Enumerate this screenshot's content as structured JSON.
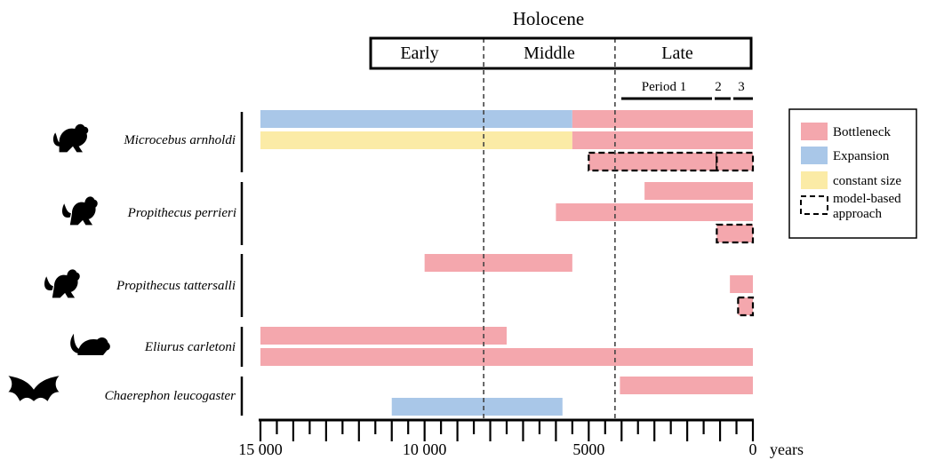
{
  "chart_data": {
    "type": "bar",
    "title": "Holocene",
    "epochs": [
      "Early",
      "Middle",
      "Late"
    ],
    "epoch_boundaries": [
      8200,
      4200
    ],
    "late_periods": [
      "Period 1",
      "2",
      "3"
    ],
    "x_unit": "years",
    "xlim": [
      15000,
      0
    ],
    "x_reversed": true,
    "tick_labels": [
      {
        "value": 15000,
        "label": "15 000"
      },
      {
        "value": 10000,
        "label": "10 000"
      },
      {
        "value": 5000,
        "label": "5000"
      },
      {
        "value": 0,
        "label": "0"
      }
    ],
    "species": [
      {
        "name": "Microcebus arnholdi",
        "icon": "mouse-lemur-icon",
        "bars": [
          {
            "row": 0,
            "segments": [
              {
                "type": "Expansion",
                "start": 15000,
                "end": 5500
              },
              {
                "type": "Bottleneck",
                "start": 5500,
                "end": 0
              }
            ]
          },
          {
            "row": 1,
            "segments": [
              {
                "type": "constant size",
                "start": 15000,
                "end": 5500
              },
              {
                "type": "Bottleneck",
                "start": 5500,
                "end": 0
              }
            ]
          },
          {
            "row": 2,
            "segments": [
              {
                "type": "Bottleneck",
                "start": 5000,
                "end": 1100,
                "model_based": true
              },
              {
                "type": "Bottleneck",
                "start": 1100,
                "end": 0,
                "model_based": true
              }
            ]
          }
        ]
      },
      {
        "name": "Propithecus perrieri",
        "icon": "sifaka-icon",
        "bars": [
          {
            "row": 0,
            "segments": [
              {
                "type": "Bottleneck",
                "start": 3300,
                "end": 0
              }
            ]
          },
          {
            "row": 1,
            "segments": [
              {
                "type": "Bottleneck",
                "start": 6000,
                "end": 0
              }
            ]
          },
          {
            "row": 2,
            "segments": [
              {
                "type": "Bottleneck",
                "start": 1100,
                "end": 0,
                "model_based": true
              }
            ]
          }
        ]
      },
      {
        "name": "Propithecus tattersalli",
        "icon": "sifaka-icon",
        "bars": [
          {
            "row": 0,
            "segments": [
              {
                "type": "Bottleneck",
                "start": 10000,
                "end": 5500
              }
            ]
          },
          {
            "row": 1,
            "segments": [
              {
                "type": "Bottleneck",
                "start": 700,
                "end": 0
              }
            ]
          },
          {
            "row": 2,
            "segments": [
              {
                "type": "Bottleneck",
                "start": 450,
                "end": 0,
                "model_based": true
              }
            ]
          }
        ]
      },
      {
        "name": "Eliurus carletoni",
        "icon": "rodent-icon",
        "bars": [
          {
            "row": 0,
            "segments": [
              {
                "type": "Bottleneck",
                "start": 15000,
                "end": 7500
              }
            ]
          },
          {
            "row": 1,
            "segments": [
              {
                "type": "Bottleneck",
                "start": 15000,
                "end": 0
              }
            ]
          }
        ]
      },
      {
        "name": "Chaerephon leucogaster",
        "icon": "bat-icon",
        "bars": [
          {
            "row": 0,
            "segments": [
              {
                "type": "Bottleneck",
                "start": 4050,
                "end": 0
              }
            ]
          },
          {
            "row": 1,
            "segments": [
              {
                "type": "Expansion",
                "start": 11000,
                "end": 5800
              }
            ]
          }
        ]
      }
    ],
    "legend": {
      "position": "right",
      "items": [
        {
          "label": "Bottleneck",
          "color": "#f4a7ad",
          "style": "fill"
        },
        {
          "label": "Expansion",
          "color": "#a9c7e8",
          "style": "fill"
        },
        {
          "label": "constant size",
          "color": "#fbeba6",
          "style": "fill"
        },
        {
          "label": "model-based approach",
          "label_lines": [
            "model-based",
            "approach"
          ],
          "color": "#000000",
          "style": "dashed"
        }
      ]
    },
    "colors": {
      "Bottleneck": "#f4a7ad",
      "Expansion": "#a9c7e8",
      "constant size": "#fbeba6"
    }
  }
}
